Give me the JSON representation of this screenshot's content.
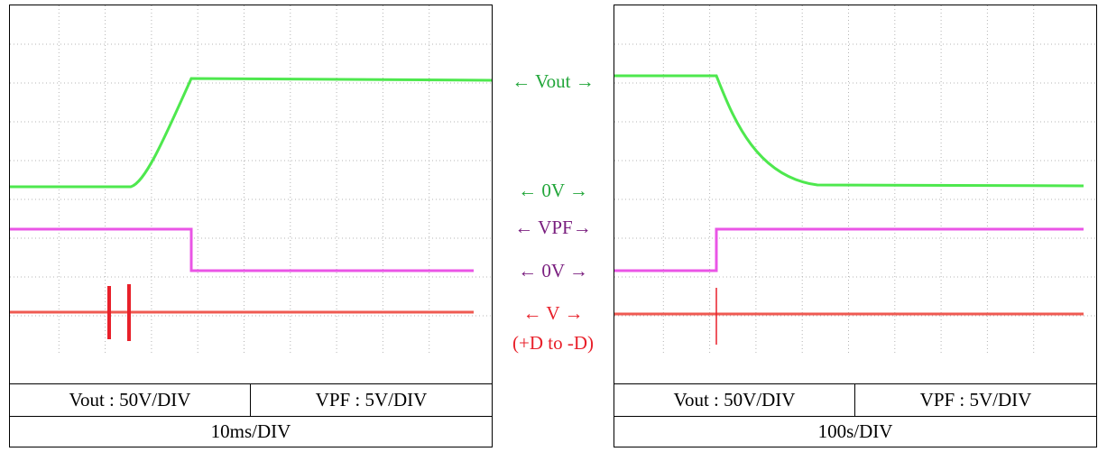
{
  "colors": {
    "vout_trace": "#4ee84e",
    "vpf_trace": "#ea55e6",
    "v_trace": "#ef5a52",
    "vout_label": "#22a63a",
    "vpf_label": "#7a1f7f",
    "v_label": "#e8202a",
    "grid_dots": "#b4b4b4"
  },
  "left_panel": {
    "vout_scale": "Vout : 50V/DIV",
    "vpf_scale": "VPF : 5V/DIV",
    "time_scale": "10ms/DIV"
  },
  "right_panel": {
    "vout_scale": "Vout : 50V/DIV",
    "vpf_scale": "VPF : 5V/DIV",
    "time_scale": "100s/DIV"
  },
  "markers": {
    "vout": "← Vout →",
    "vout_zero": "← 0V →",
    "vpf": "← VPF→",
    "vpf_zero": "← 0V →",
    "v": "← V →",
    "v_range": "(+D to -D)"
  }
}
